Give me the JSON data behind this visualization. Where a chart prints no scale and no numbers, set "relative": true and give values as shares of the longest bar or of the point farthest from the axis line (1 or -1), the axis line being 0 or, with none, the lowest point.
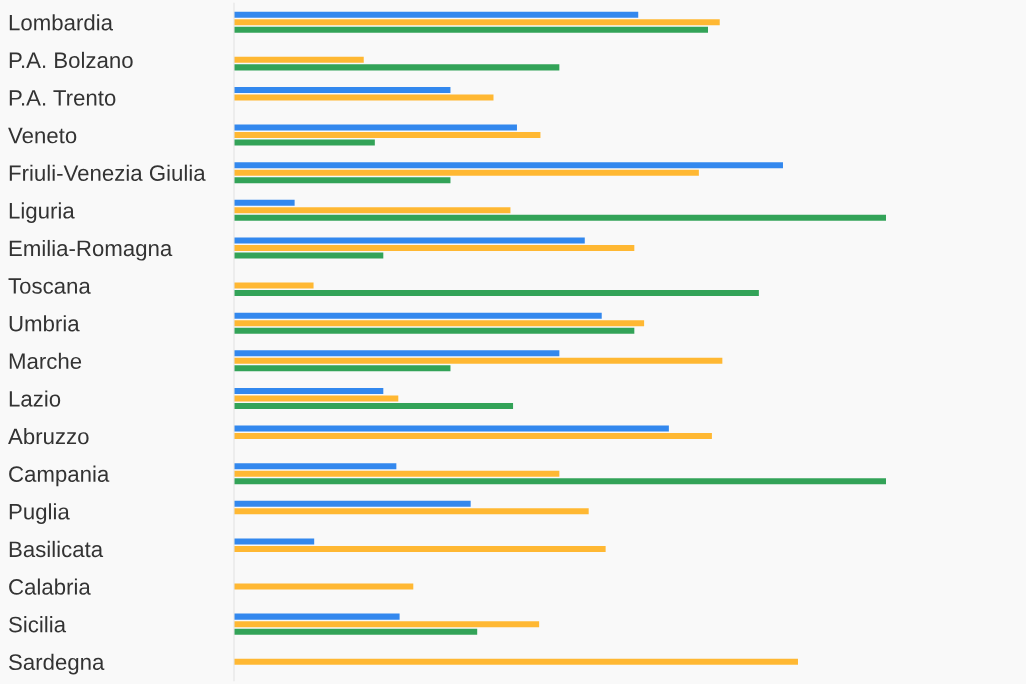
{
  "chart_data": {
    "type": "bar",
    "orientation": "horizontal",
    "relative": true,
    "categories": [
      "Lombardia",
      "P.A. Bolzano",
      "P.A. Trento",
      "Veneto",
      "Friuli-Venezia Giulia",
      "Liguria",
      "Emilia-Romagna",
      "Toscana",
      "Umbria",
      "Marche",
      "Lazio",
      "Abruzzo",
      "Campania",
      "Puglia",
      "Basilicata",
      "Calabria",
      "Sicilia",
      "Sardegna"
    ],
    "series": [
      {
        "color": "#3388ee",
        "values": [
          0.62,
          null,
          0.332,
          0.434,
          0.842,
          0.093,
          0.538,
          null,
          0.564,
          0.499,
          0.229,
          0.667,
          0.249,
          0.363,
          0.123,
          null,
          0.254,
          null
        ]
      },
      {
        "color": "#ffb833",
        "values": [
          0.745,
          0.199,
          0.398,
          0.47,
          0.713,
          0.424,
          0.614,
          0.122,
          0.629,
          0.749,
          0.252,
          0.733,
          0.499,
          0.544,
          0.57,
          0.275,
          0.468,
          0.865
        ]
      },
      {
        "color": "#33a358",
        "values": [
          0.727,
          0.499,
          null,
          0.216,
          0.332,
          1,
          0.229,
          0.805,
          0.614,
          0.332,
          0.428,
          null,
          1,
          null,
          null,
          null,
          0.373,
          null
        ]
      }
    ]
  }
}
